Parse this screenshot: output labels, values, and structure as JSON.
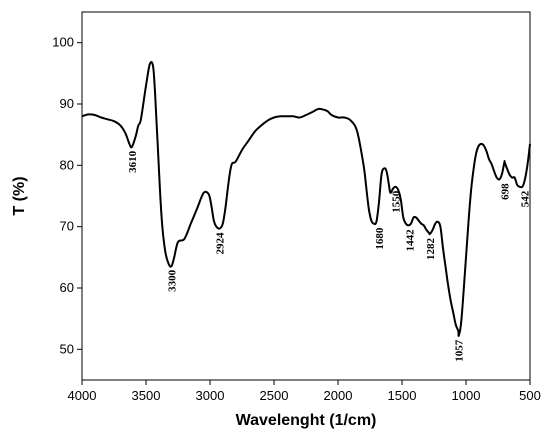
{
  "chart_data": {
    "type": "line",
    "title": "",
    "xlabel": "Wavelenght (1/cm)",
    "ylabel": "T (%)",
    "xlim": [
      4000,
      500
    ],
    "ylim": [
      45,
      105
    ],
    "x_ticks": [
      4000,
      3500,
      3000,
      2500,
      2000,
      1500,
      1000,
      500
    ],
    "y_ticks": [
      50,
      60,
      70,
      80,
      90,
      100
    ],
    "x_tick_labels": [
      "4000",
      "3500",
      "3000",
      "2500",
      "2000",
      "1500",
      "1000",
      "500"
    ],
    "y_tick_labels": [
      "50",
      "60",
      "70",
      "80",
      "90",
      "100"
    ],
    "grid": false,
    "series": [
      {
        "x": [
          4000,
          3950,
          3900,
          3850,
          3800,
          3750,
          3700,
          3660,
          3630,
          3610,
          3580,
          3560,
          3540,
          3500,
          3470,
          3445,
          3430,
          3410,
          3380,
          3350,
          3320,
          3300,
          3280,
          3250,
          3200,
          3150,
          3100,
          3050,
          3010,
          2990,
          2970,
          2950,
          2924,
          2900,
          2880,
          2850,
          2830,
          2800,
          2750,
          2700,
          2650,
          2600,
          2550,
          2500,
          2450,
          2400,
          2350,
          2300,
          2250,
          2200,
          2150,
          2100,
          2080,
          2050,
          2000,
          1950,
          1900,
          1850,
          1800,
          1780,
          1760,
          1740,
          1720,
          1700,
          1680,
          1660,
          1640,
          1620,
          1600,
          1590,
          1570,
          1550,
          1530,
          1510,
          1490,
          1470,
          1450,
          1430,
          1410,
          1390,
          1370,
          1350,
          1330,
          1310,
          1290,
          1282,
          1260,
          1240,
          1220,
          1200,
          1180,
          1160,
          1140,
          1120,
          1100,
          1080,
          1060,
          1057,
          1040,
          1020,
          1000,
          980,
          960,
          940,
          920,
          900,
          880,
          860,
          840,
          820,
          800,
          780,
          760,
          740,
          720,
          700,
          698,
          680,
          660,
          640,
          620,
          600,
          580,
          560,
          542,
          520,
          500
        ],
        "y": [
          88,
          88.3,
          88.2,
          87.8,
          87.5,
          87.2,
          86.5,
          85.2,
          83.5,
          83,
          84.8,
          86.5,
          87.5,
          93,
          96.5,
          96.2,
          92,
          84,
          72,
          66,
          63.8,
          63.6,
          65,
          67.5,
          68,
          70.5,
          73,
          75.5,
          75.3,
          73.5,
          71,
          70,
          69.7,
          70.5,
          73,
          78,
          80.2,
          80.6,
          82.5,
          84,
          85.5,
          86.5,
          87.3,
          87.8,
          88,
          88,
          88,
          87.8,
          88.2,
          88.7,
          89.2,
          89,
          88.8,
          88.2,
          87.8,
          87.8,
          87.3,
          85.5,
          80,
          76.5,
          73,
          71,
          70.5,
          70.8,
          74,
          78.5,
          79.5,
          79,
          76.5,
          75.5,
          76.2,
          76.5,
          76,
          74.5,
          71.5,
          70.5,
          70.2,
          70.5,
          71.5,
          71.5,
          71,
          70.5,
          70.2,
          69.5,
          69,
          68.8,
          69.5,
          70.5,
          70.8,
          70,
          66.5,
          63.5,
          60.5,
          58,
          56,
          54,
          53,
          52.2,
          54,
          59,
          65,
          71,
          76,
          79.5,
          82,
          83.2,
          83.5,
          83.2,
          82.3,
          81,
          80.2,
          79,
          78,
          77.7,
          78.5,
          80.5,
          80.5,
          79.5,
          78.5,
          78,
          78,
          76.8,
          76.5,
          76.5,
          77.5,
          80,
          83.5
        ]
      }
    ],
    "annotations": [
      {
        "text": "3610",
        "x": 3610,
        "y": 83
      },
      {
        "text": "3300",
        "x": 3300,
        "y": 63.6
      },
      {
        "text": "2924",
        "x": 2924,
        "y": 69.7
      },
      {
        "text": "1680",
        "x": 1680,
        "y": 70.5
      },
      {
        "text": "1550",
        "x": 1550,
        "y": 76.5
      },
      {
        "text": "1442",
        "x": 1442,
        "y": 70.2
      },
      {
        "text": "1282",
        "x": 1282,
        "y": 68.8
      },
      {
        "text": "1057",
        "x": 1057,
        "y": 52.2
      },
      {
        "text": "698",
        "x": 698,
        "y": 77.7
      },
      {
        "text": "542",
        "x": 542,
        "y": 76.5
      }
    ]
  }
}
